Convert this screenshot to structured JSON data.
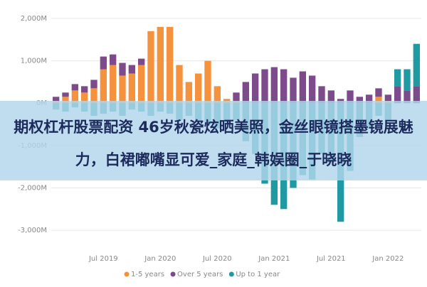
{
  "chart_data": {
    "type": "bar",
    "stacked": true,
    "categories": [
      null,
      null,
      null,
      null,
      null,
      "Jul 2019",
      null,
      null,
      null,
      null,
      null,
      "Jan 2020",
      null,
      null,
      null,
      null,
      null,
      "Jul 2020",
      null,
      null,
      null,
      null,
      null,
      "Jan 2021",
      null,
      null,
      null,
      null,
      null,
      "Jul 2021",
      null,
      null,
      null,
      null,
      null,
      "Jan 2022",
      null,
      null,
      null
    ],
    "series": [
      {
        "name": "1-5 years",
        "color": "#f5923e",
        "values": [
          50,
          150,
          300,
          250,
          350,
          800,
          900,
          650,
          700,
          900,
          1700,
          1800,
          1800,
          900,
          500,
          700,
          1000,
          400,
          100,
          50,
          0,
          0,
          0,
          0,
          0,
          0,
          0,
          0,
          0,
          0,
          0,
          0,
          0,
          0,
          150,
          50,
          0,
          0,
          0
        ]
      },
      {
        "name": "Over 5 years",
        "color": "#7d4a8c",
        "values": [
          100,
          100,
          150,
          150,
          200,
          300,
          250,
          300,
          200,
          150,
          0,
          0,
          0,
          0,
          0,
          0,
          0,
          0,
          0,
          200,
          500,
          700,
          800,
          850,
          800,
          600,
          750,
          650,
          400,
          300,
          100,
          300,
          150,
          200,
          200,
          150,
          400,
          300,
          400
        ]
      },
      {
        "name": "Up to 1 year",
        "color": "#1f9aa3",
        "values": [
          -150,
          -200,
          -100,
          -200,
          -300,
          -250,
          -200,
          -300,
          -150,
          -200,
          -300,
          -200,
          -250,
          -400,
          -300,
          -400,
          -500,
          -600,
          -500,
          -400,
          -900,
          -1200,
          -1900,
          -2400,
          -2500,
          -2000,
          -1700,
          -1800,
          -1200,
          -1400,
          -2800,
          -1600,
          -800,
          -600,
          -300,
          -400,
          400,
          500,
          1000
        ]
      }
    ],
    "ylim": [
      -3300,
      2200
    ],
    "yticks": [
      {
        "value": -3000,
        "label": "-3,000M"
      },
      {
        "value": -2000,
        "label": "-2,000M"
      },
      {
        "value": -1000,
        "label": "-1,000M"
      },
      {
        "value": 0,
        "label": "0M"
      },
      {
        "value": 1000,
        "label": "1,000M"
      },
      {
        "value": 2000,
        "label": "2,000M"
      }
    ],
    "grid": true
  },
  "banner": {
    "text": "期权杠杆股票配资 46岁秋瓷炫晒美照，金丝眼镜搭墨镜展魅力，白裙嘟嘴显可爱_家庭_韩娱圈_于晓晓"
  }
}
